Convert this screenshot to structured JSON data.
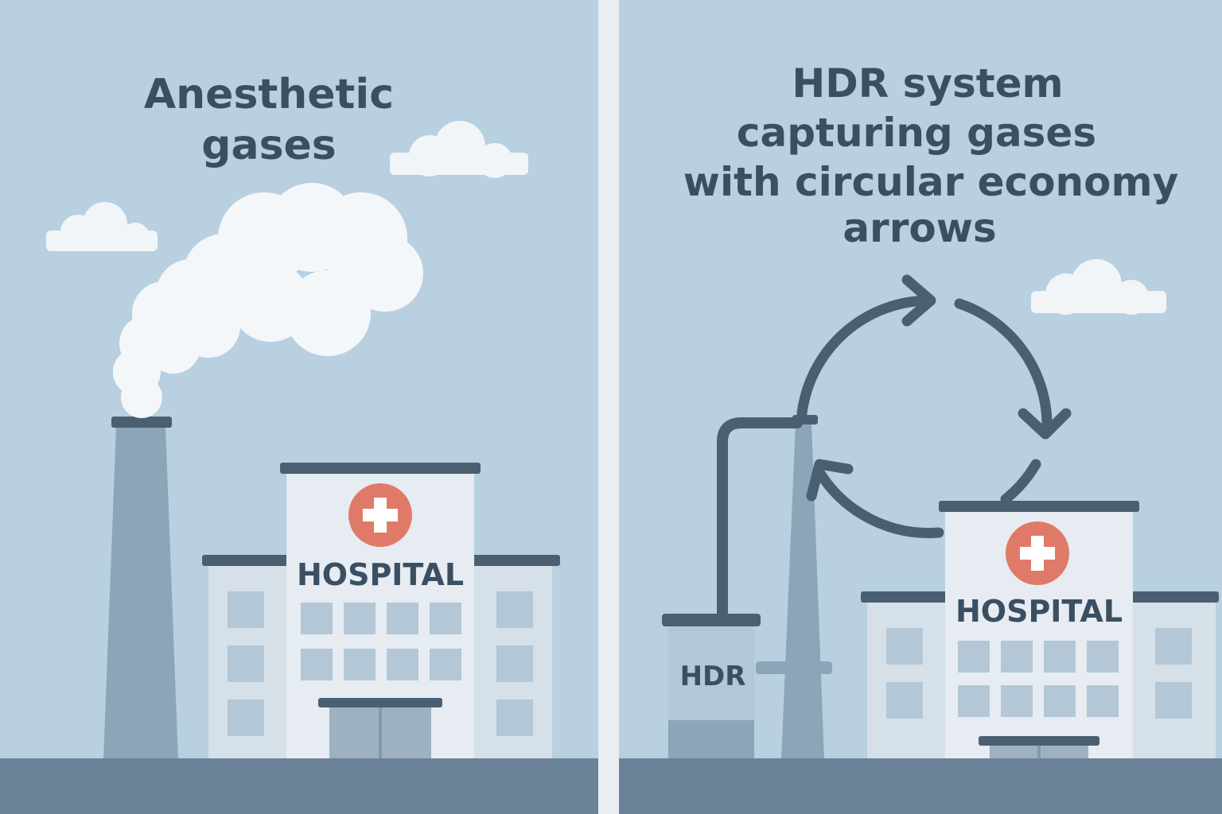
{
  "panels": {
    "left": {
      "title_lines": [
        "Anesthetic",
        "gases"
      ],
      "hospital_sign": "HOSPITAL"
    },
    "right": {
      "title_lines": [
        "HDR system",
        "capturing gases",
        "with circular economy",
        "arrows"
      ],
      "hospital_sign": "HOSPITAL",
      "unit_label": "HDR"
    }
  },
  "colors": {
    "sky": "#b8d0e0",
    "ground": "#6b8398",
    "divider": "#e9eef2",
    "ink": "#3a4f62",
    "chimney": "#8da5b8",
    "building_main": "#e6ecf1",
    "building_wing": "#d6e0e8",
    "window": "#b3c7d6",
    "door": "#9db1c1",
    "roof": "#4a6072",
    "cross": "#e07a68",
    "smoke": "#f4f7fa",
    "cloud": "#f1f5f8",
    "arrow": "#4a6072"
  },
  "icons": {
    "cross": "medical-cross-icon",
    "cycle": "recycle-arrows-icon",
    "cloud": "cloud-icon"
  }
}
